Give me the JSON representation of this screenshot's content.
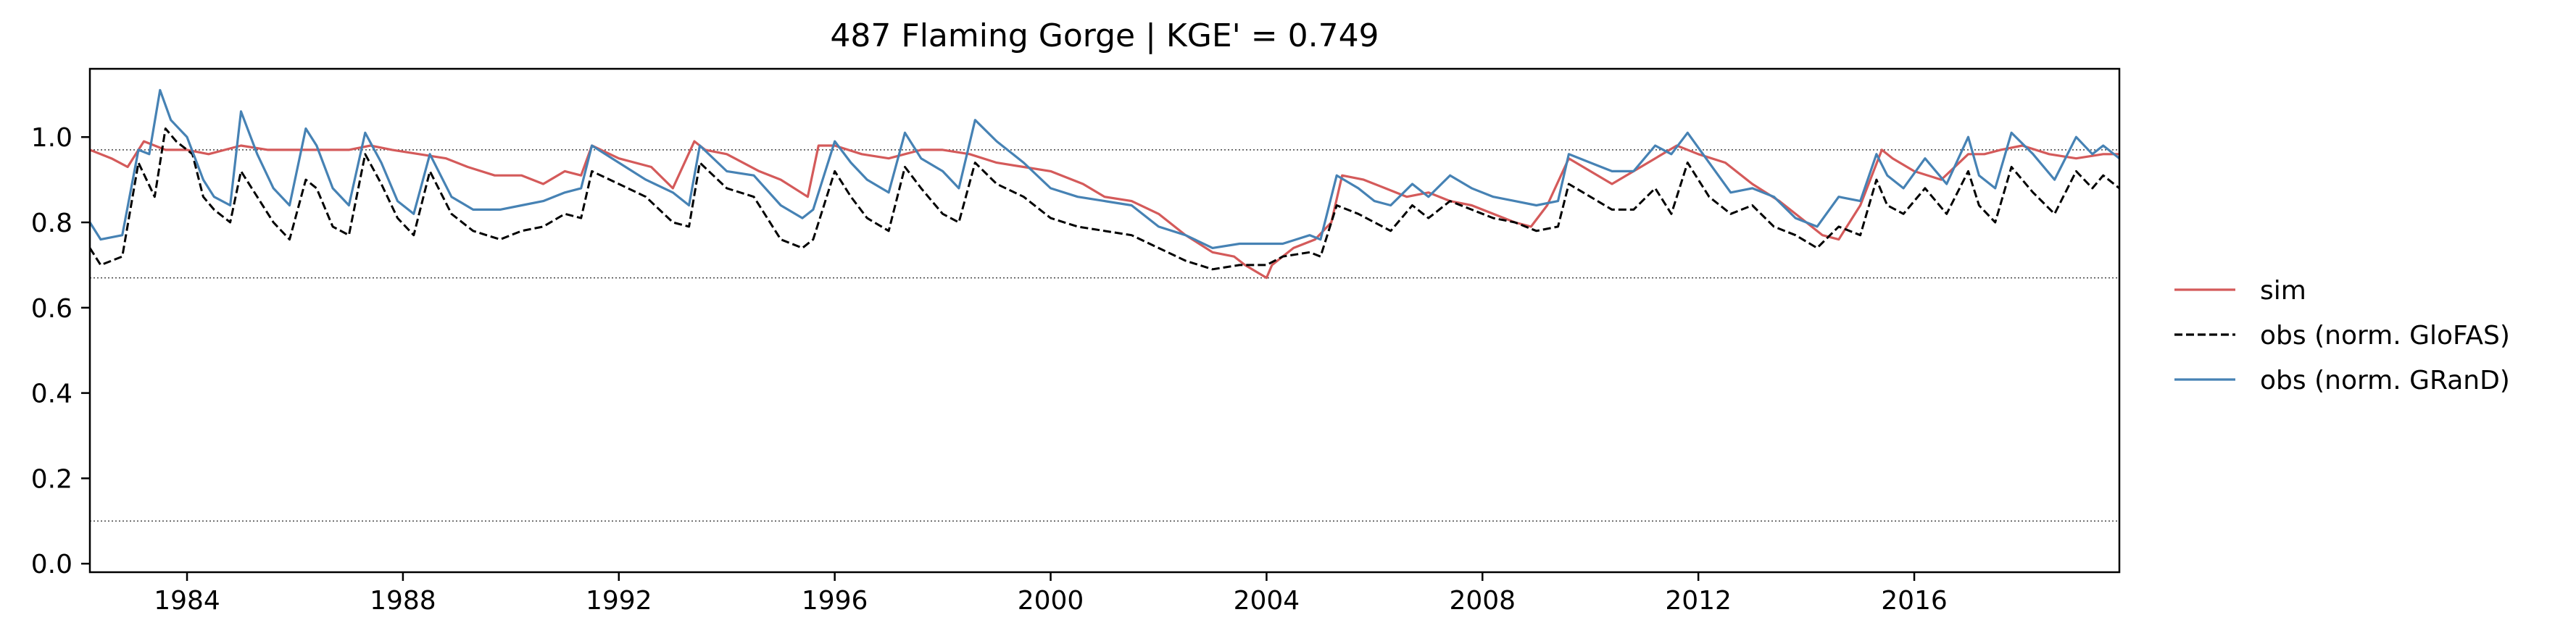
{
  "chart_data": {
    "type": "line",
    "title": "487  Flaming Gorge | KGE' = 0.749",
    "xlabel": "",
    "ylabel": "",
    "xlim": [
      1982.2,
      2019.8
    ],
    "ylim": [
      -0.02,
      1.16
    ],
    "xticks": [
      1984,
      1988,
      1992,
      1996,
      2000,
      2004,
      2008,
      2012,
      2016
    ],
    "xtick_labels": [
      "1984",
      "1988",
      "1992",
      "1996",
      "2000",
      "2004",
      "2008",
      "2012",
      "2016"
    ],
    "yticks": [
      0.0,
      0.2,
      0.4,
      0.6,
      0.8,
      1.0
    ],
    "ytick_labels": [
      "0.0",
      "0.2",
      "0.4",
      "0.6",
      "0.8",
      "1.0"
    ],
    "reference_lines": [
      0.97,
      0.67,
      0.1
    ],
    "legend_position": "right",
    "series": [
      {
        "name": "sim",
        "color": "#d45a5a",
        "style": "solid",
        "x": [
          1982.2,
          1982.6,
          1982.9,
          1983.2,
          1983.6,
          1984.0,
          1984.4,
          1985.0,
          1985.5,
          1986.0,
          1986.5,
          1987.0,
          1987.4,
          1987.8,
          1988.3,
          1988.8,
          1989.2,
          1989.7,
          1990.2,
          1990.6,
          1991.0,
          1991.3,
          1991.5,
          1992.0,
          1992.6,
          1993.0,
          1993.4,
          1993.6,
          1994.0,
          1994.6,
          1995.0,
          1995.5,
          1995.7,
          1996.0,
          1996.5,
          1997.0,
          1997.6,
          1998.0,
          1998.5,
          1999.0,
          1999.5,
          2000.0,
          2000.6,
          2001.0,
          2001.5,
          2002.0,
          2002.5,
          2003.0,
          2003.4,
          2003.6,
          2004.0,
          2004.1,
          2004.5,
          2004.9,
          2005.2,
          2005.4,
          2005.8,
          2006.2,
          2006.6,
          2007.0,
          2007.4,
          2007.8,
          2008.2,
          2008.6,
          2008.9,
          2009.2,
          2009.6,
          2010.0,
          2010.4,
          2010.8,
          2011.2,
          2011.6,
          2012.0,
          2012.5,
          2013.0,
          2013.5,
          2014.0,
          2014.3,
          2014.6,
          2015.0,
          2015.4,
          2015.6,
          2016.0,
          2016.5,
          2017.0,
          2017.3,
          2017.6,
          2018.0,
          2018.5,
          2019.0,
          2019.5,
          2019.8
        ],
        "values": [
          0.97,
          0.95,
          0.93,
          0.99,
          0.97,
          0.97,
          0.96,
          0.98,
          0.97,
          0.97,
          0.97,
          0.97,
          0.98,
          0.97,
          0.96,
          0.95,
          0.93,
          0.91,
          0.91,
          0.89,
          0.92,
          0.91,
          0.98,
          0.95,
          0.93,
          0.88,
          0.99,
          0.97,
          0.96,
          0.92,
          0.9,
          0.86,
          0.98,
          0.98,
          0.96,
          0.95,
          0.97,
          0.97,
          0.96,
          0.94,
          0.93,
          0.92,
          0.89,
          0.86,
          0.85,
          0.82,
          0.77,
          0.73,
          0.72,
          0.7,
          0.67,
          0.7,
          0.74,
          0.76,
          0.8,
          0.91,
          0.9,
          0.88,
          0.86,
          0.87,
          0.85,
          0.84,
          0.82,
          0.8,
          0.79,
          0.84,
          0.95,
          0.92,
          0.89,
          0.92,
          0.95,
          0.98,
          0.96,
          0.94,
          0.89,
          0.85,
          0.8,
          0.77,
          0.76,
          0.84,
          0.97,
          0.95,
          0.92,
          0.9,
          0.96,
          0.96,
          0.97,
          0.98,
          0.96,
          0.95,
          0.96,
          0.96
        ]
      },
      {
        "name": "obs (norm. GloFAS)",
        "color": "#000000",
        "style": "dashed",
        "x": [
          1982.2,
          1982.4,
          1982.8,
          1983.1,
          1983.4,
          1983.6,
          1983.8,
          1984.1,
          1984.3,
          1984.5,
          1984.8,
          1985.0,
          1985.3,
          1985.6,
          1985.9,
          1986.2,
          1986.4,
          1986.7,
          1987.0,
          1987.3,
          1987.6,
          1987.9,
          1988.2,
          1988.5,
          1988.9,
          1989.3,
          1989.8,
          1990.2,
          1990.6,
          1991.0,
          1991.3,
          1991.5,
          1992.0,
          1992.5,
          1993.0,
          1993.3,
          1993.5,
          1994.0,
          1994.5,
          1995.0,
          1995.4,
          1995.6,
          1996.0,
          1996.3,
          1996.6,
          1997.0,
          1997.3,
          1997.6,
          1998.0,
          1998.3,
          1998.6,
          1999.0,
          1999.5,
          2000.0,
          2000.5,
          2001.0,
          2001.5,
          2002.0,
          2002.5,
          2003.0,
          2003.5,
          2004.0,
          2004.3,
          2004.8,
          2005.0,
          2005.3,
          2005.7,
          2006.0,
          2006.3,
          2006.7,
          2007.0,
          2007.4,
          2007.8,
          2008.2,
          2008.6,
          2009.0,
          2009.4,
          2009.6,
          2010.0,
          2010.4,
          2010.8,
          2011.2,
          2011.5,
          2011.8,
          2012.2,
          2012.6,
          2013.0,
          2013.4,
          2013.8,
          2014.2,
          2014.6,
          2015.0,
          2015.3,
          2015.5,
          2015.8,
          2016.2,
          2016.6,
          2017.0,
          2017.2,
          2017.5,
          2017.8,
          2018.2,
          2018.6,
          2019.0,
          2019.3,
          2019.5,
          2019.8
        ],
        "values": [
          0.74,
          0.7,
          0.72,
          0.94,
          0.86,
          1.02,
          0.99,
          0.96,
          0.86,
          0.83,
          0.8,
          0.92,
          0.86,
          0.8,
          0.76,
          0.9,
          0.88,
          0.79,
          0.77,
          0.96,
          0.89,
          0.81,
          0.77,
          0.92,
          0.82,
          0.78,
          0.76,
          0.78,
          0.79,
          0.82,
          0.81,
          0.92,
          0.89,
          0.86,
          0.8,
          0.79,
          0.94,
          0.88,
          0.86,
          0.76,
          0.74,
          0.76,
          0.92,
          0.86,
          0.81,
          0.78,
          0.93,
          0.88,
          0.82,
          0.8,
          0.94,
          0.89,
          0.86,
          0.81,
          0.79,
          0.78,
          0.77,
          0.74,
          0.71,
          0.69,
          0.7,
          0.7,
          0.72,
          0.73,
          0.72,
          0.84,
          0.82,
          0.8,
          0.78,
          0.84,
          0.81,
          0.85,
          0.83,
          0.81,
          0.8,
          0.78,
          0.79,
          0.89,
          0.86,
          0.83,
          0.83,
          0.88,
          0.82,
          0.94,
          0.86,
          0.82,
          0.84,
          0.79,
          0.77,
          0.74,
          0.79,
          0.77,
          0.9,
          0.84,
          0.82,
          0.88,
          0.82,
          0.92,
          0.84,
          0.8,
          0.93,
          0.87,
          0.82,
          0.92,
          0.88,
          0.91,
          0.88
        ]
      },
      {
        "name": "obs (norm. GRanD)",
        "color": "#4682b4",
        "style": "solid",
        "x": [
          1982.2,
          1982.4,
          1982.8,
          1983.1,
          1983.3,
          1983.5,
          1983.7,
          1984.0,
          1984.3,
          1984.5,
          1984.8,
          1985.0,
          1985.3,
          1985.6,
          1985.9,
          1986.2,
          1986.4,
          1986.7,
          1987.0,
          1987.3,
          1987.6,
          1987.9,
          1988.2,
          1988.5,
          1988.9,
          1989.3,
          1989.8,
          1990.2,
          1990.6,
          1991.0,
          1991.3,
          1991.5,
          1992.0,
          1992.5,
          1993.0,
          1993.3,
          1993.5,
          1994.0,
          1994.5,
          1995.0,
          1995.4,
          1995.6,
          1996.0,
          1996.3,
          1996.6,
          1997.0,
          1997.3,
          1997.6,
          1998.0,
          1998.3,
          1998.6,
          1999.0,
          1999.5,
          2000.0,
          2000.5,
          2001.0,
          2001.5,
          2002.0,
          2002.5,
          2003.0,
          2003.5,
          2004.0,
          2004.3,
          2004.8,
          2005.0,
          2005.3,
          2005.7,
          2006.0,
          2006.3,
          2006.7,
          2007.0,
          2007.4,
          2007.8,
          2008.2,
          2008.6,
          2009.0,
          2009.4,
          2009.6,
          2010.0,
          2010.4,
          2010.8,
          2011.2,
          2011.5,
          2011.8,
          2012.2,
          2012.6,
          2013.0,
          2013.4,
          2013.8,
          2014.2,
          2014.6,
          2015.0,
          2015.3,
          2015.5,
          2015.8,
          2016.2,
          2016.6,
          2017.0,
          2017.2,
          2017.5,
          2017.8,
          2018.2,
          2018.6,
          2019.0,
          2019.3,
          2019.5,
          2019.8
        ],
        "values": [
          0.8,
          0.76,
          0.77,
          0.97,
          0.96,
          1.11,
          1.04,
          1.0,
          0.9,
          0.86,
          0.84,
          1.06,
          0.96,
          0.88,
          0.84,
          1.02,
          0.98,
          0.88,
          0.84,
          1.01,
          0.94,
          0.85,
          0.82,
          0.96,
          0.86,
          0.83,
          0.83,
          0.84,
          0.85,
          0.87,
          0.88,
          0.98,
          0.94,
          0.9,
          0.87,
          0.84,
          0.98,
          0.92,
          0.91,
          0.84,
          0.81,
          0.83,
          0.99,
          0.94,
          0.9,
          0.87,
          1.01,
          0.95,
          0.92,
          0.88,
          1.04,
          0.99,
          0.94,
          0.88,
          0.86,
          0.85,
          0.84,
          0.79,
          0.77,
          0.74,
          0.75,
          0.75,
          0.75,
          0.77,
          0.76,
          0.91,
          0.88,
          0.85,
          0.84,
          0.89,
          0.86,
          0.91,
          0.88,
          0.86,
          0.85,
          0.84,
          0.85,
          0.96,
          0.94,
          0.92,
          0.92,
          0.98,
          0.96,
          1.01,
          0.94,
          0.87,
          0.88,
          0.86,
          0.81,
          0.79,
          0.86,
          0.85,
          0.96,
          0.91,
          0.88,
          0.95,
          0.89,
          1.0,
          0.91,
          0.88,
          1.01,
          0.96,
          0.9,
          1.0,
          0.96,
          0.98,
          0.95
        ]
      }
    ]
  }
}
